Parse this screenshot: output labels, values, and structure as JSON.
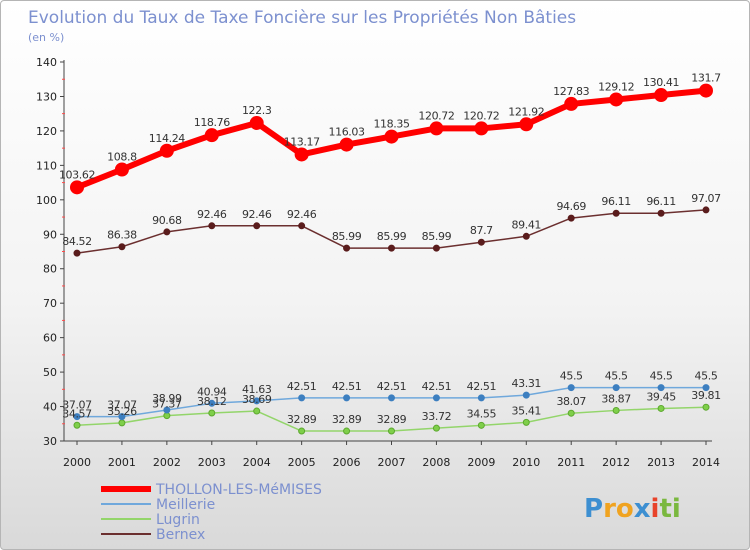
{
  "chart_data": {
    "type": "line",
    "title": "Evolution du Taux de Taxe Foncière sur les Propriétés Non Bâties",
    "subtitle": "(en %)",
    "x": [
      "2000",
      "2001",
      "2002",
      "2003",
      "2004",
      "2005",
      "2006",
      "2007",
      "2008",
      "2009",
      "2010",
      "2011",
      "2012",
      "2013",
      "2014"
    ],
    "ylim": [
      30,
      140
    ],
    "yticks": [
      30,
      40,
      50,
      60,
      70,
      80,
      90,
      100,
      110,
      120,
      130,
      140
    ],
    "grid": false,
    "legend_position": "bottom-left",
    "series": [
      {
        "name": "THOLLON-LES-MéMISES",
        "color": "#ff0000",
        "values": [
          103.62,
          108.8,
          114.24,
          118.76,
          122.3,
          113.17,
          116.03,
          118.35,
          120.72,
          120.72,
          121.92,
          127.83,
          129.12,
          130.41,
          131.7
        ],
        "labels": [
          "103.62",
          "108.8",
          "114.24",
          "118.76",
          "122.3",
          "113.17",
          "116.03",
          "118.35",
          "120.72",
          "120.72",
          "121.92",
          "127.83",
          "129.12",
          "130.41",
          "131.7"
        ]
      },
      {
        "name": "Meillerie",
        "color": "#6fa8dc",
        "values": [
          37.07,
          37.07,
          38.99,
          40.94,
          41.63,
          42.51,
          42.51,
          42.51,
          42.51,
          42.51,
          43.31,
          45.5,
          45.5,
          45.5,
          45.5
        ],
        "labels": [
          "37.07",
          "37.07",
          "38.99",
          "40.94",
          "41.63",
          "42.51",
          "42.51",
          "42.51",
          "42.51",
          "42.51",
          "43.31",
          "45.5",
          "45.5",
          "45.5",
          "45.5"
        ]
      },
      {
        "name": "Lugrin",
        "color": "#93d56a",
        "values": [
          34.57,
          35.26,
          37.37,
          38.12,
          38.69,
          32.89,
          32.89,
          32.89,
          33.72,
          34.55,
          35.41,
          38.07,
          38.87,
          39.45,
          39.81
        ],
        "labels": [
          "34.57",
          "35.26",
          "37.37",
          "38.12",
          "38.69",
          "32.89",
          "32.89",
          "32.89",
          "33.72",
          "34.55",
          "35.41",
          "38.07",
          "38.87",
          "39.45",
          "39.81"
        ]
      },
      {
        "name": "Bernex",
        "color": "#6b2f2f",
        "values": [
          84.52,
          86.38,
          90.68,
          92.46,
          92.46,
          92.46,
          85.99,
          85.99,
          85.99,
          87.7,
          89.41,
          94.69,
          96.11,
          96.11,
          97.07
        ],
        "labels": [
          "84.52",
          "86.38",
          "90.68",
          "92.46",
          "92.46",
          "92.46",
          "85.99",
          "85.99",
          "85.99",
          "87.7",
          "89.41",
          "94.69",
          "96.11",
          "96.11",
          "97.07"
        ]
      }
    ]
  },
  "logo": {
    "letters": [
      "P",
      "r",
      "o",
      "x",
      "i",
      "t",
      "i"
    ],
    "colors": [
      "#3d8fd1",
      "#f0a320",
      "#f0a320",
      "#3d8fd1",
      "#e8432a",
      "#7ab83f",
      "#7ab83f"
    ]
  }
}
